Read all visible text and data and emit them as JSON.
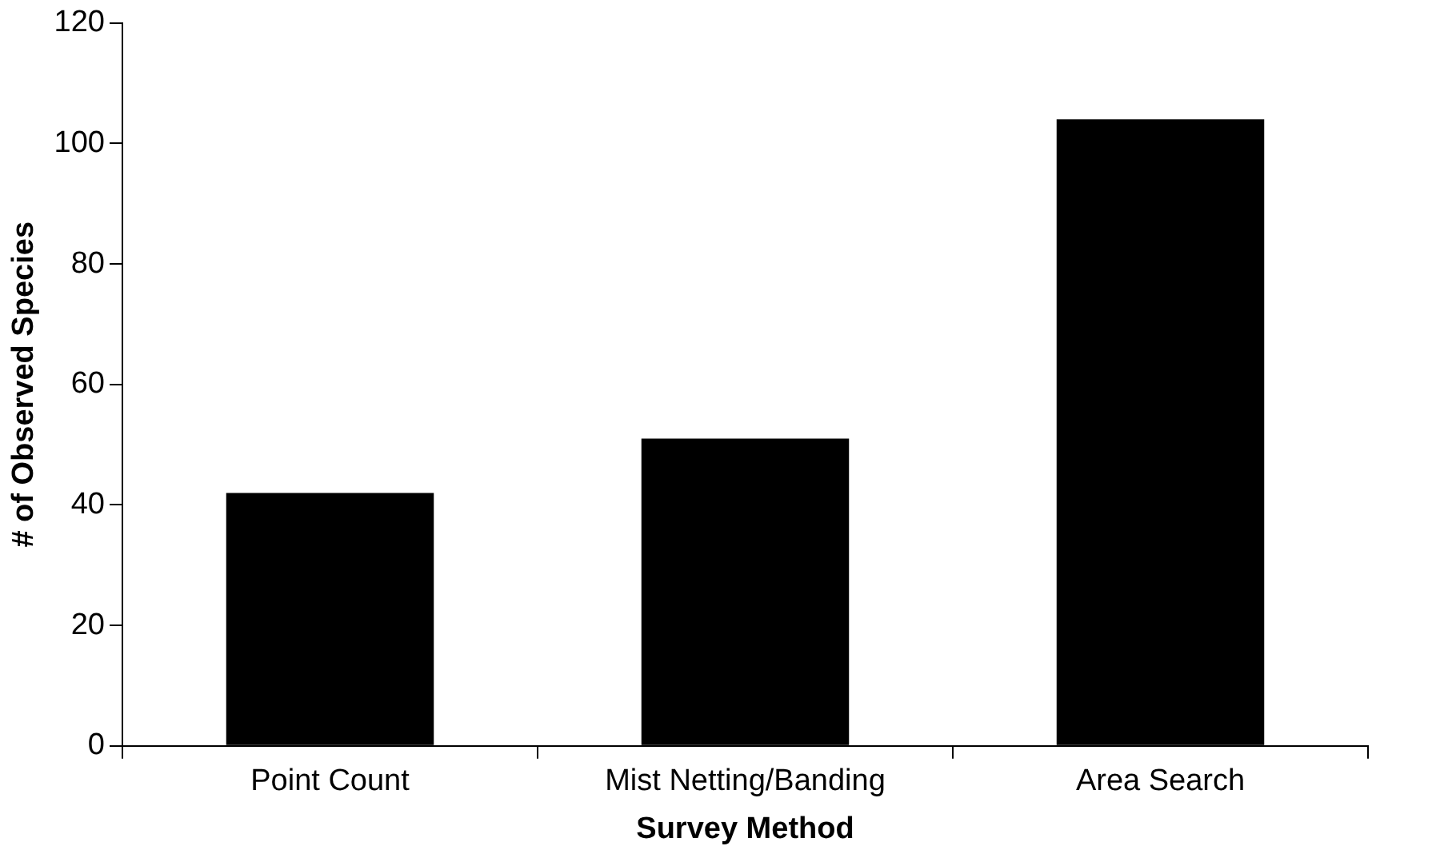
{
  "chart_data": {
    "type": "bar",
    "xlabel": "Survey Method",
    "ylabel": "# of Observed Species",
    "categories": [
      "Point Count",
      "Mist Netting/Banding",
      "Area Search"
    ],
    "values": [
      42,
      51,
      104
    ],
    "color": "#000000",
    "ylim": [
      0,
      120
    ],
    "yticks": [
      0,
      20,
      40,
      60,
      80,
      100,
      120
    ],
    "grid": false,
    "legend": false
  }
}
